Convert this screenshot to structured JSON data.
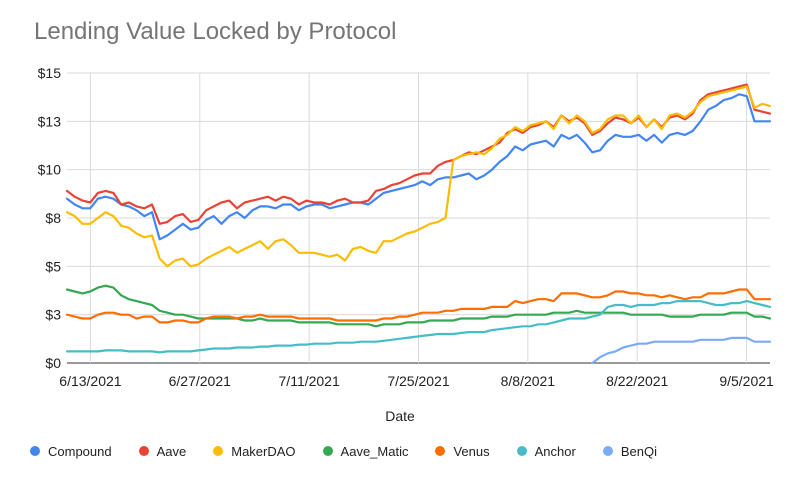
{
  "chart_data": {
    "type": "line",
    "title": "Lending Value Locked by Protocol",
    "xlabel": "Date",
    "ylabel": "",
    "x_tick_labels": [
      "6/13/2021",
      "6/27/2021",
      "7/11/2021",
      "7/25/2021",
      "8/8/2021",
      "8/22/2021",
      "9/5/2021"
    ],
    "y_tick_labels": [
      "$0",
      "$3",
      "$5",
      "$8",
      "$10",
      "$13",
      "$15"
    ],
    "ylim": [
      0,
      15
    ],
    "grid": "both",
    "legend": "bottom",
    "x_start": "2021-06-10",
    "x_end": "2021-09-08",
    "series": [
      {
        "name": "Compound",
        "color": "#4285f4",
        "values": [
          8.5,
          8.2,
          8.0,
          8.0,
          8.5,
          8.6,
          8.5,
          8.2,
          8.1,
          7.9,
          7.6,
          7.8,
          6.4,
          6.6,
          6.9,
          7.2,
          6.9,
          7.0,
          7.4,
          7.6,
          7.2,
          7.6,
          7.8,
          7.5,
          7.9,
          8.1,
          8.1,
          8.0,
          8.2,
          8.2,
          7.9,
          8.1,
          8.2,
          8.2,
          8.0,
          8.1,
          8.2,
          8.3,
          8.3,
          8.2,
          8.5,
          8.8,
          8.9,
          9.0,
          9.1,
          9.2,
          9.4,
          9.2,
          9.5,
          9.6,
          9.6,
          9.7,
          9.8,
          9.5,
          9.7,
          10.0,
          10.4,
          10.7,
          11.2,
          11.0,
          11.3,
          11.4,
          11.5,
          11.2,
          11.8,
          11.6,
          11.8,
          11.4,
          10.9,
          11.0,
          11.5,
          11.8,
          11.7,
          11.7,
          11.8,
          11.5,
          11.8,
          11.4,
          11.8,
          11.9,
          11.8,
          12.0,
          12.5,
          13.1,
          13.3,
          13.6,
          13.7,
          13.9,
          13.8,
          12.5,
          12.5,
          12.5
        ]
      },
      {
        "name": "Aave",
        "color": "#ea4335",
        "values": [
          8.9,
          8.6,
          8.4,
          8.3,
          8.8,
          8.9,
          8.8,
          8.2,
          8.3,
          8.1,
          8.0,
          8.2,
          7.2,
          7.3,
          7.6,
          7.7,
          7.3,
          7.4,
          7.9,
          8.1,
          8.3,
          8.4,
          8.0,
          8.3,
          8.4,
          8.5,
          8.6,
          8.4,
          8.6,
          8.5,
          8.2,
          8.4,
          8.3,
          8.3,
          8.2,
          8.4,
          8.5,
          8.3,
          8.3,
          8.4,
          8.9,
          9.0,
          9.2,
          9.3,
          9.5,
          9.7,
          9.8,
          9.8,
          10.2,
          10.4,
          10.5,
          10.7,
          10.9,
          10.8,
          11.0,
          11.2,
          11.4,
          11.9,
          12.1,
          11.9,
          12.2,
          12.3,
          12.5,
          12.2,
          12.8,
          12.5,
          12.7,
          12.4,
          11.8,
          12.0,
          12.4,
          12.7,
          12.6,
          12.4,
          12.7,
          12.2,
          12.6,
          12.2,
          12.7,
          12.8,
          12.6,
          12.9,
          13.6,
          13.9,
          14.0,
          14.1,
          14.2,
          14.3,
          14.4,
          13.1,
          13.0,
          12.9
        ]
      },
      {
        "name": "MakerDAO",
        "color": "#fbbc04",
        "values": [
          7.8,
          7.6,
          7.2,
          7.2,
          7.5,
          7.8,
          7.6,
          7.1,
          7.0,
          6.7,
          6.5,
          6.6,
          5.4,
          5.0,
          5.3,
          5.4,
          5.0,
          5.1,
          5.4,
          5.6,
          5.8,
          6.0,
          5.7,
          5.9,
          6.1,
          6.3,
          5.9,
          6.3,
          6.4,
          6.1,
          5.7,
          5.7,
          5.7,
          5.6,
          5.5,
          5.6,
          5.3,
          5.9,
          6.0,
          5.8,
          5.7,
          6.3,
          6.3,
          6.5,
          6.7,
          6.8,
          7.0,
          7.2,
          7.3,
          7.5,
          10.5,
          10.7,
          10.8,
          10.9,
          10.8,
          11.1,
          11.6,
          11.8,
          12.2,
          12.0,
          12.3,
          12.4,
          12.5,
          12.1,
          12.8,
          12.4,
          12.8,
          12.5,
          11.9,
          12.1,
          12.6,
          12.8,
          12.8,
          12.4,
          12.8,
          12.2,
          12.6,
          12.1,
          12.8,
          12.9,
          12.7,
          13.0,
          13.5,
          13.8,
          13.9,
          14.0,
          14.1,
          14.2,
          14.3,
          13.2,
          13.4,
          13.3
        ]
      },
      {
        "name": "Aave_Matic",
        "color": "#34a853",
        "values": [
          3.8,
          3.7,
          3.6,
          3.7,
          3.9,
          4.0,
          3.9,
          3.5,
          3.3,
          3.2,
          3.1,
          3.0,
          2.7,
          2.6,
          2.5,
          2.5,
          2.4,
          2.3,
          2.3,
          2.3,
          2.3,
          2.3,
          2.3,
          2.2,
          2.2,
          2.3,
          2.2,
          2.2,
          2.2,
          2.2,
          2.1,
          2.1,
          2.1,
          2.1,
          2.1,
          2.0,
          2.0,
          2.0,
          2.0,
          2.0,
          1.9,
          2.0,
          2.0,
          2.0,
          2.1,
          2.1,
          2.1,
          2.2,
          2.2,
          2.2,
          2.2,
          2.3,
          2.3,
          2.3,
          2.3,
          2.4,
          2.4,
          2.4,
          2.5,
          2.5,
          2.5,
          2.5,
          2.5,
          2.6,
          2.6,
          2.6,
          2.7,
          2.6,
          2.6,
          2.6,
          2.6,
          2.6,
          2.6,
          2.5,
          2.5,
          2.5,
          2.5,
          2.5,
          2.4,
          2.4,
          2.4,
          2.4,
          2.5,
          2.5,
          2.5,
          2.5,
          2.6,
          2.6,
          2.6,
          2.4,
          2.4,
          2.3
        ]
      },
      {
        "name": "Venus",
        "color": "#ff6d01",
        "values": [
          2.5,
          2.4,
          2.3,
          2.3,
          2.5,
          2.6,
          2.6,
          2.5,
          2.5,
          2.3,
          2.4,
          2.4,
          2.1,
          2.1,
          2.2,
          2.2,
          2.1,
          2.1,
          2.3,
          2.4,
          2.4,
          2.4,
          2.3,
          2.4,
          2.4,
          2.5,
          2.4,
          2.4,
          2.4,
          2.4,
          2.3,
          2.3,
          2.3,
          2.3,
          2.3,
          2.2,
          2.2,
          2.2,
          2.2,
          2.2,
          2.2,
          2.3,
          2.3,
          2.4,
          2.4,
          2.5,
          2.6,
          2.6,
          2.6,
          2.7,
          2.7,
          2.8,
          2.8,
          2.8,
          2.8,
          2.9,
          2.9,
          2.9,
          3.2,
          3.1,
          3.2,
          3.3,
          3.3,
          3.2,
          3.6,
          3.6,
          3.6,
          3.5,
          3.4,
          3.4,
          3.5,
          3.7,
          3.7,
          3.6,
          3.6,
          3.5,
          3.5,
          3.4,
          3.5,
          3.4,
          3.3,
          3.4,
          3.4,
          3.6,
          3.6,
          3.6,
          3.7,
          3.8,
          3.8,
          3.3,
          3.3,
          3.3
        ]
      },
      {
        "name": "Anchor",
        "color": "#46bdc6",
        "values": [
          0.6,
          0.6,
          0.6,
          0.6,
          0.6,
          0.65,
          0.65,
          0.65,
          0.6,
          0.6,
          0.6,
          0.6,
          0.55,
          0.6,
          0.6,
          0.6,
          0.6,
          0.65,
          0.7,
          0.75,
          0.75,
          0.75,
          0.8,
          0.8,
          0.8,
          0.85,
          0.85,
          0.9,
          0.9,
          0.9,
          0.95,
          0.95,
          1.0,
          1.0,
          1.0,
          1.05,
          1.05,
          1.05,
          1.1,
          1.1,
          1.1,
          1.15,
          1.2,
          1.25,
          1.3,
          1.35,
          1.4,
          1.45,
          1.5,
          1.5,
          1.5,
          1.55,
          1.6,
          1.6,
          1.6,
          1.7,
          1.75,
          1.8,
          1.85,
          1.9,
          1.9,
          2.0,
          2.0,
          2.1,
          2.2,
          2.3,
          2.3,
          2.3,
          2.4,
          2.5,
          2.9,
          3.0,
          3.0,
          2.9,
          3.0,
          3.0,
          3.0,
          3.1,
          3.1,
          3.2,
          3.2,
          3.2,
          3.2,
          3.1,
          3.0,
          3.0,
          3.1,
          3.1,
          3.2,
          3.1,
          3.0,
          2.9
        ]
      },
      {
        "name": "BenQi",
        "color": "#7baaf7",
        "values": [
          null,
          null,
          null,
          null,
          null,
          null,
          null,
          null,
          null,
          null,
          null,
          null,
          null,
          null,
          null,
          null,
          null,
          null,
          null,
          null,
          null,
          null,
          null,
          null,
          null,
          null,
          null,
          null,
          null,
          null,
          null,
          null,
          null,
          null,
          null,
          null,
          null,
          null,
          null,
          null,
          null,
          null,
          null,
          null,
          null,
          null,
          null,
          null,
          null,
          null,
          null,
          null,
          null,
          null,
          null,
          null,
          null,
          null,
          null,
          null,
          null,
          null,
          null,
          null,
          null,
          null,
          null,
          null,
          0.0,
          0.3,
          0.5,
          0.6,
          0.8,
          0.9,
          1.0,
          1.0,
          1.1,
          1.1,
          1.1,
          1.1,
          1.1,
          1.1,
          1.2,
          1.2,
          1.2,
          1.2,
          1.3,
          1.3,
          1.3,
          1.1,
          1.1,
          1.1
        ]
      }
    ]
  }
}
